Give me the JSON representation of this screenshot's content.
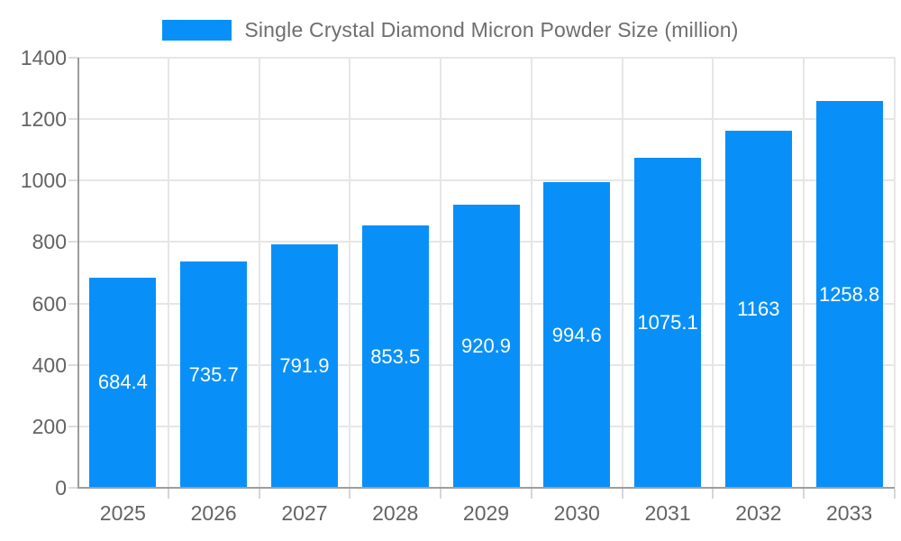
{
  "legend": {
    "label": "Single Crystal Diamond Micron Powder Size (million)"
  },
  "colors": {
    "bar": "#0990f8",
    "grid": "#e6e6e6",
    "axis": "#9e9e9e",
    "tick_text": "#636363",
    "legend_text": "#6e6e6e",
    "value_text": "#ffffff",
    "background": "#ffffff"
  },
  "chart_data": {
    "type": "bar",
    "title": "Single Crystal Diamond Micron Powder Size (million)",
    "categories": [
      "2025",
      "2026",
      "2027",
      "2028",
      "2029",
      "2030",
      "2031",
      "2032",
      "2033"
    ],
    "values": [
      684.4,
      735.7,
      791.9,
      853.5,
      920.9,
      994.6,
      1075.1,
      1163,
      1258.8
    ],
    "value_labels": [
      "684.4",
      "735.7",
      "791.9",
      "853.5",
      "920.9",
      "994.6",
      "1075.1",
      "1163",
      "1258.8"
    ],
    "xlabel": "",
    "ylabel": "",
    "ylim": [
      0,
      1400
    ],
    "ytick_step": 200,
    "ytick_labels": [
      "0",
      "200",
      "400",
      "600",
      "800",
      "1000",
      "1200",
      "1400"
    ],
    "grid": true,
    "legend_position": "top-center",
    "series_color": "#0990f8",
    "value_label_position": "center-of-bar"
  }
}
